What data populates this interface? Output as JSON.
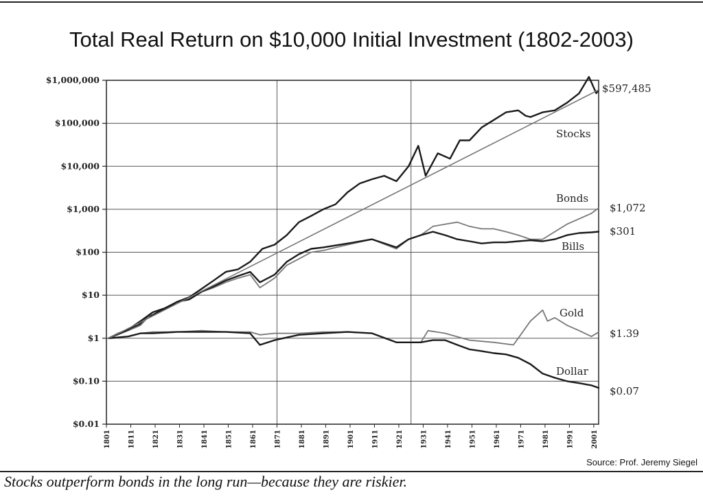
{
  "title": "Total Real Return on $10,000 Initial Investment (1802-2003)",
  "source": "Source: Prof. Jeremy Siegel",
  "caption": "Stocks outperform bonds in the long run—because they are riskier.",
  "chart_data": {
    "type": "line",
    "title": "Total Real Return on $10,000 Initial Investment (1802-2003)",
    "xlabel": "",
    "ylabel": "",
    "y_scale": "log",
    "xlim": [
      1801,
      2003
    ],
    "ylim": [
      0.01,
      1000000
    ],
    "grid": true,
    "y_ticks": [
      {
        "value": 1000000,
        "label": "$1,000,000"
      },
      {
        "value": 100000,
        "label": "$100,000"
      },
      {
        "value": 10000,
        "label": "$10,000"
      },
      {
        "value": 1000,
        "label": "$1,000"
      },
      {
        "value": 100,
        "label": "$100"
      },
      {
        "value": 10,
        "label": "$10"
      },
      {
        "value": 1,
        "label": "$1"
      },
      {
        "value": 0.1,
        "label": "$0.10"
      },
      {
        "value": 0.01,
        "label": "$0.01"
      }
    ],
    "x_ticks": [
      "1801",
      "1811",
      "1821",
      "1831",
      "1841",
      "1851",
      "1861",
      "1871",
      "1881",
      "1891",
      "1901",
      "1911",
      "1921",
      "1931",
      "1941",
      "1951",
      "1961",
      "1971",
      "1981",
      "1991",
      "2001"
    ],
    "vertical_gridlines": [
      1871,
      1926
    ],
    "series": [
      {
        "name": "Stocks",
        "color": "#1a1a1a",
        "end_label": "$597,485",
        "x": [
          1802,
          1806,
          1810,
          1814,
          1818,
          1822,
          1826,
          1830,
          1835,
          1840,
          1845,
          1850,
          1855,
          1860,
          1865,
          1870,
          1875,
          1880,
          1885,
          1890,
          1895,
          1900,
          1905,
          1910,
          1915,
          1920,
          1925,
          1929,
          1932,
          1937,
          1942,
          1946,
          1950,
          1955,
          1960,
          1965,
          1970,
          1973,
          1975,
          1980,
          1985,
          1990,
          1995,
          1999,
          2000,
          2002,
          2003
        ],
        "y": [
          1,
          1.3,
          1.6,
          2,
          3,
          4,
          5,
          7,
          9,
          14,
          22,
          35,
          40,
          60,
          120,
          150,
          250,
          500,
          700,
          1000,
          1300,
          2500,
          4000,
          5000,
          6000,
          4500,
          10000,
          30000,
          6000,
          20000,
          15000,
          40000,
          40000,
          80000,
          120000,
          180000,
          200000,
          150000,
          140000,
          180000,
          200000,
          300000,
          500000,
          1200000,
          900000,
          500000,
          597485
        ]
      },
      {
        "name": "Bonds",
        "color": "#777777",
        "end_label": "$1,072",
        "x": [
          1802,
          1810,
          1815,
          1820,
          1825,
          1830,
          1835,
          1840,
          1845,
          1850,
          1855,
          1860,
          1864,
          1870,
          1875,
          1880,
          1885,
          1890,
          1900,
          1910,
          1920,
          1925,
          1930,
          1935,
          1940,
          1945,
          1950,
          1955,
          1960,
          1965,
          1970,
          1975,
          1980,
          1985,
          1990,
          1995,
          2000,
          2003
        ],
        "y": [
          1,
          1.5,
          2,
          4,
          5,
          7,
          8,
          12,
          15,
          20,
          25,
          30,
          15,
          25,
          50,
          70,
          100,
          110,
          150,
          200,
          120,
          200,
          250,
          400,
          450,
          500,
          400,
          350,
          350,
          300,
          250,
          200,
          200,
          300,
          450,
          600,
          800,
          1072
        ]
      },
      {
        "name": "Bills",
        "color": "#1a1a1a",
        "end_label": "$301",
        "x": [
          1802,
          1810,
          1815,
          1820,
          1825,
          1830,
          1835,
          1840,
          1845,
          1850,
          1855,
          1860,
          1864,
          1870,
          1875,
          1880,
          1885,
          1890,
          1900,
          1910,
          1920,
          1925,
          1930,
          1935,
          1940,
          1945,
          1950,
          1955,
          1960,
          1965,
          1970,
          1975,
          1980,
          1985,
          1990,
          1995,
          2000,
          2003
        ],
        "y": [
          1,
          1.6,
          2.5,
          4,
          5,
          7,
          8,
          12,
          16,
          22,
          28,
          35,
          20,
          30,
          60,
          90,
          120,
          130,
          160,
          200,
          130,
          200,
          250,
          300,
          250,
          200,
          180,
          160,
          170,
          170,
          180,
          190,
          180,
          200,
          250,
          280,
          290,
          301
        ]
      },
      {
        "name": "Gold",
        "color": "#777777",
        "end_label": "$1.39",
        "x": [
          1802,
          1810,
          1815,
          1820,
          1830,
          1840,
          1850,
          1860,
          1864,
          1870,
          1880,
          1890,
          1900,
          1910,
          1920,
          1925,
          1930,
          1933,
          1940,
          1950,
          1960,
          1968,
          1971,
          1975,
          1980,
          1982,
          1985,
          1990,
          1995,
          2000,
          2003
        ],
        "y": [
          1,
          1.1,
          1.3,
          1.4,
          1.4,
          1.5,
          1.4,
          1.4,
          1.2,
          1.3,
          1.3,
          1.4,
          1.4,
          1.3,
          0.8,
          0.8,
          0.8,
          1.5,
          1.3,
          0.9,
          0.8,
          0.7,
          1.2,
          2.5,
          4.5,
          2.5,
          3,
          2,
          1.5,
          1.1,
          1.39
        ]
      },
      {
        "name": "Dollar",
        "color": "#1a1a1a",
        "end_label": "$0.07",
        "x": [
          1802,
          1810,
          1815,
          1820,
          1830,
          1840,
          1850,
          1860,
          1864,
          1870,
          1880,
          1890,
          1900,
          1910,
          1920,
          1925,
          1930,
          1935,
          1940,
          1945,
          1950,
          1955,
          1960,
          1965,
          1970,
          1975,
          1980,
          1985,
          1990,
          1995,
          2000,
          2003
        ],
        "y": [
          1,
          1.1,
          1.3,
          1.3,
          1.4,
          1.4,
          1.4,
          1.3,
          0.7,
          0.9,
          1.2,
          1.3,
          1.4,
          1.3,
          0.8,
          0.8,
          0.8,
          0.9,
          0.9,
          0.7,
          0.55,
          0.5,
          0.45,
          0.42,
          0.35,
          0.25,
          0.15,
          0.12,
          0.1,
          0.09,
          0.08,
          0.07
        ]
      },
      {
        "name": "",
        "color": "#777777",
        "style": "trend",
        "x": [
          1802,
          2003
        ],
        "y": [
          1,
          597485
        ]
      }
    ]
  }
}
